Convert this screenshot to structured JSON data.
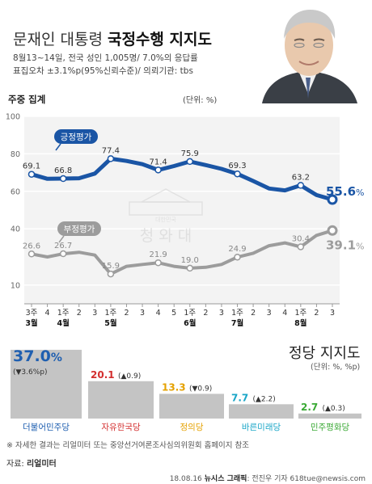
{
  "header": {
    "title_plain": "문재인 대통령 ",
    "title_strong": "국정수행 지지도",
    "survey_line1": "8월13~14일, 전국 성인 1,005명/ 7.0%의 응답률",
    "survey_line2": "표집오차 ±3.1%p(95%신뢰수준)/ 의뢰기관: tbs"
  },
  "section_label": "주중 집계",
  "unit_label": "(단위: %)",
  "watermark": {
    "main": "청 와 대",
    "sub": "대한민국"
  },
  "chart_data": [
    {
      "type": "line",
      "x": [
        "3주",
        "4",
        "1주",
        "2",
        "3",
        "1주",
        "2",
        "3",
        "4",
        "5",
        "1주",
        "2",
        "3",
        "1주",
        "2",
        "3",
        "4",
        "1주",
        "2",
        "3"
      ],
      "month_labels": [
        {
          "label": "3월",
          "index": 0
        },
        {
          "label": "4월",
          "index": 2
        },
        {
          "label": "5월",
          "index": 5
        },
        {
          "label": "6월",
          "index": 10
        },
        {
          "label": "7월",
          "index": 13
        },
        {
          "label": "8월",
          "index": 17
        }
      ],
      "ylim": [
        0,
        100
      ],
      "yticks": [
        10,
        40,
        60,
        80,
        100
      ],
      "grid": true,
      "series": [
        {
          "name": "긍정평가",
          "color": "#1a55a5",
          "values": [
            69.1,
            66.7,
            66.8,
            67.0,
            69.5,
            77.4,
            76.2,
            74.5,
            71.4,
            73.5,
            75.9,
            74.0,
            72.0,
            69.3,
            65.5,
            61.5,
            60.5,
            63.2,
            58.0,
            55.6
          ],
          "labels": {
            "0": "69.1",
            "2": "66.8",
            "5": "77.4",
            "8": "71.4",
            "10": "75.9",
            "13": "69.3",
            "17": "63.2"
          },
          "final_label": "55.6",
          "final_unit": "%"
        },
        {
          "name": "부정평가",
          "color": "#9c9c9c",
          "values": [
            26.6,
            25.0,
            26.7,
            27.5,
            26.0,
            15.9,
            20.0,
            21.0,
            21.9,
            20.0,
            19.0,
            19.5,
            21.0,
            24.9,
            27.0,
            31.0,
            32.5,
            30.4,
            36.5,
            39.1
          ],
          "labels": {
            "0": "26.6",
            "2": "26.7",
            "5": "15.9",
            "8": "21.9",
            "10": "19.0",
            "13": "24.9",
            "17": "30.4"
          },
          "final_label": "39.1",
          "final_unit": "%"
        }
      ]
    },
    {
      "type": "bar",
      "title": "정당 지지도",
      "unit": "(단위: %, %p)",
      "categories": [
        "더불어민주당",
        "자유한국당",
        "정의당",
        "바른미래당",
        "민주평화당"
      ],
      "values": [
        37.0,
        20.1,
        13.3,
        7.7,
        2.7
      ],
      "value_labels": [
        "37.0",
        "20.1",
        "13.3",
        "7.7",
        "2.7"
      ],
      "changes": [
        "(▼3.6%p)",
        "(▲0.9)",
        "(▼0.9)",
        "(▲2.2)",
        "(▲0.3)"
      ],
      "colors": [
        "#1f5fb0",
        "#d32f2f",
        "#e5a100",
        "#1aa6c7",
        "#3aa935"
      ]
    }
  ],
  "footer": {
    "note": "※ 자세한 결과는 리얼미터 또는 중앙선거여론조사심의위원회 홈페이지 참조",
    "source_prefix": "자료: ",
    "source_name": "리얼미터",
    "credit_prefix": "18.08.16 ",
    "credit_outlet": "뉴시스 그래픽",
    "credit_suffix": ": 전진우 기자 618tue@newsis.com"
  }
}
